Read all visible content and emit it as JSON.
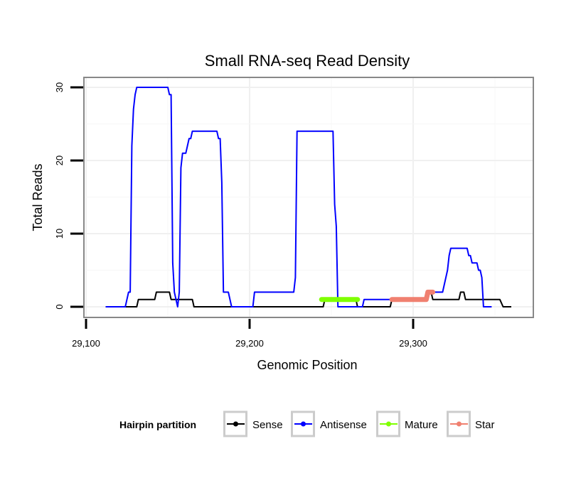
{
  "chart_data": {
    "type": "line",
    "title": "Small RNA-seq Read Density",
    "xlabel": "Genomic Position",
    "ylabel": "Total Reads",
    "xlim": [
      29100,
      29380
    ],
    "ylim": [
      -1,
      31
    ],
    "x_ticks": [
      29100,
      29200,
      29300
    ],
    "x_tick_labels": [
      "29,100",
      "29,200",
      "29,300"
    ],
    "y_ticks": [
      0,
      10,
      20,
      30
    ],
    "y_tick_labels": [
      "0",
      "10",
      "20",
      "30"
    ],
    "grid": true,
    "legend": {
      "title": "Hairpin partition",
      "position": "bottom",
      "entries": [
        "Sense",
        "Antisense",
        "Mature",
        "Star"
      ]
    },
    "series": [
      {
        "name": "Sense",
        "color": "#000000",
        "points": [
          [
            29112,
            0
          ],
          [
            29131,
            0
          ],
          [
            29132,
            1
          ],
          [
            29142,
            1
          ],
          [
            29143,
            2
          ],
          [
            29151,
            2
          ],
          [
            29152,
            1
          ],
          [
            29165,
            1
          ],
          [
            29166,
            0
          ],
          [
            29245,
            0
          ],
          [
            29246,
            1
          ],
          [
            29265,
            1
          ],
          [
            29266,
            0
          ],
          [
            29286,
            0
          ],
          [
            29287,
            1
          ],
          [
            29308,
            1
          ],
          [
            29309,
            2
          ],
          [
            29311,
            2
          ],
          [
            29312,
            1
          ],
          [
            29328,
            1
          ],
          [
            29329,
            2
          ],
          [
            29331,
            2
          ],
          [
            29332,
            1
          ],
          [
            29353,
            1
          ],
          [
            29355,
            0
          ],
          [
            29360,
            0
          ]
        ]
      },
      {
        "name": "Antisense",
        "color": "#0000ff",
        "points": [
          [
            29112,
            0
          ],
          [
            29124,
            0
          ],
          [
            29125,
            1
          ],
          [
            29126,
            2
          ],
          [
            29127,
            2
          ],
          [
            29128,
            22
          ],
          [
            29129,
            27
          ],
          [
            29130,
            29
          ],
          [
            29131,
            30
          ],
          [
            29150,
            30
          ],
          [
            29151,
            29
          ],
          [
            29152,
            29
          ],
          [
            29153,
            6
          ],
          [
            29154,
            2
          ],
          [
            29155,
            1
          ],
          [
            29156,
            0
          ],
          [
            29157,
            2
          ],
          [
            29158,
            19
          ],
          [
            29159,
            21
          ],
          [
            29161,
            21
          ],
          [
            29162,
            22
          ],
          [
            29163,
            23
          ],
          [
            29164,
            23
          ],
          [
            29165,
            24
          ],
          [
            29180,
            24
          ],
          [
            29181,
            23
          ],
          [
            29182,
            23
          ],
          [
            29183,
            17
          ],
          [
            29184,
            2
          ],
          [
            29187,
            2
          ],
          [
            29188,
            1
          ],
          [
            29189,
            0
          ],
          [
            29202,
            0
          ],
          [
            29203,
            2
          ],
          [
            29227,
            2
          ],
          [
            29228,
            4
          ],
          [
            29229,
            24
          ],
          [
            29251,
            24
          ],
          [
            29252,
            14
          ],
          [
            29253,
            11
          ],
          [
            29254,
            0
          ],
          [
            29269,
            0
          ],
          [
            29270,
            1
          ],
          [
            29308,
            1
          ],
          [
            29309,
            1
          ],
          [
            29310,
            2
          ],
          [
            29318,
            2
          ],
          [
            29319,
            3
          ],
          [
            29320,
            4
          ],
          [
            29321,
            5
          ],
          [
            29322,
            7
          ],
          [
            29323,
            8
          ],
          [
            29333,
            8
          ],
          [
            29334,
            7
          ],
          [
            29335,
            7
          ],
          [
            29336,
            6
          ],
          [
            29339,
            6
          ],
          [
            29340,
            5
          ],
          [
            29341,
            5
          ],
          [
            29342,
            4
          ],
          [
            29343,
            0
          ],
          [
            29348,
            0
          ]
        ]
      },
      {
        "name": "Mature",
        "color": "#7fff00",
        "points": [
          [
            29244,
            1
          ],
          [
            29266,
            1
          ]
        ]
      },
      {
        "name": "Star",
        "color": "#f08070",
        "points": [
          [
            29287,
            1
          ],
          [
            29308,
            1
          ],
          [
            29309,
            2
          ],
          [
            29312,
            2
          ]
        ]
      }
    ]
  }
}
